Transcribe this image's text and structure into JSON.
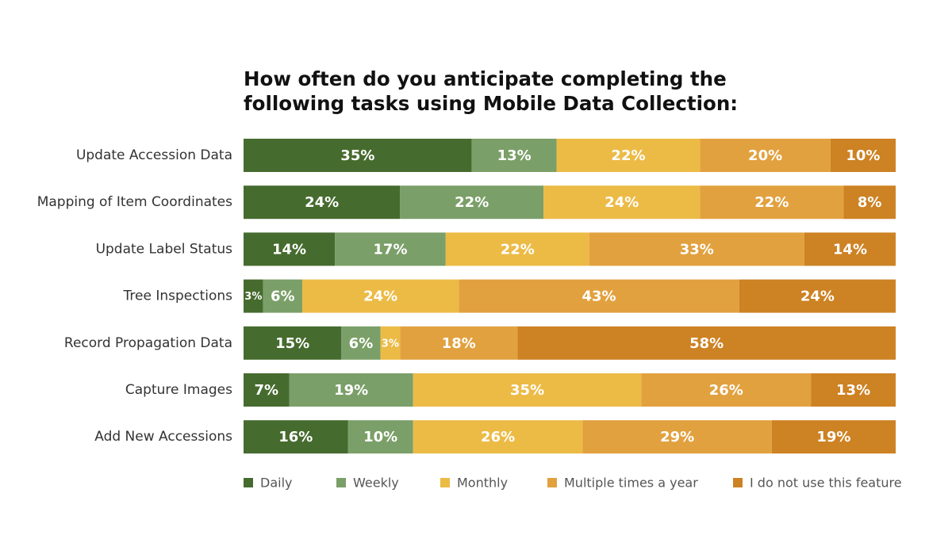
{
  "chart_data": {
    "type": "stacked-bar-horizontal",
    "title": "How often do you anticipate completing the following tasks using Mobile Data Collection:",
    "categories": [
      "Update Accession Data",
      "Mapping of Item Coordinates",
      "Update Label Status",
      "Tree Inspections",
      "Record Propagation Data",
      "Capture Images",
      "Add New Accessions"
    ],
    "xlim": [
      0,
      100
    ],
    "series": [
      {
        "name": "Daily",
        "color": "#466b2e",
        "values": [
          35,
          24,
          14,
          3,
          15,
          7,
          16
        ],
        "value_labels": [
          "35%",
          "24%",
          "14%",
          "3%",
          "15%",
          "7%",
          "16%"
        ]
      },
      {
        "name": "Weekly",
        "color": "#7b9f68",
        "values": [
          13,
          22,
          17,
          6,
          6,
          19,
          10
        ],
        "value_labels": [
          "13%",
          "22%",
          "17%",
          "6%",
          "6%",
          "19%",
          "10%"
        ]
      },
      {
        "name": "Monthly",
        "color": "#ecbb46",
        "values": [
          22,
          24,
          22,
          24,
          3,
          35,
          26
        ],
        "value_labels": [
          "22%",
          "24%",
          "22%",
          "24%",
          "3%",
          "35%",
          "26%"
        ]
      },
      {
        "name": "Multiple times a year",
        "color": "#e2a13f",
        "values": [
          20,
          22,
          33,
          43,
          18,
          26,
          29
        ],
        "value_labels": [
          "20%",
          "22%",
          "33%",
          "43%",
          "18%",
          "26%",
          "29%"
        ]
      },
      {
        "name": "I do not use this feature",
        "color": "#cd8223",
        "values": [
          10,
          8,
          14,
          24,
          58,
          13,
          19
        ],
        "value_labels": [
          "10%",
          "8%",
          "14%",
          "24%",
          "58%",
          "13%",
          "19%"
        ]
      }
    ],
    "legend": "bottom"
  }
}
